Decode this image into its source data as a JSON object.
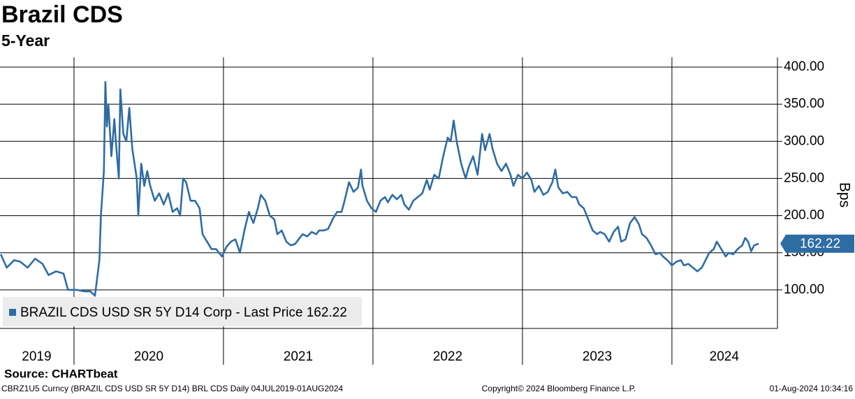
{
  "chart_data": {
    "type": "line",
    "title": "Brazil CDS",
    "subtitle": "5-Year",
    "y_label": "Bps",
    "source": "Source: CHARTbeat",
    "footer_left": "CBRZ1U5 Curncy (BRAZIL CDS USD SR 5Y D14) BRL CDS  Daily 04JUL2019-01AUG2024",
    "footer_center": "Copyright© 2024 Bloomberg Finance L.P.",
    "footer_right": "01-Aug-2024 10:34:16",
    "legend_text": "BRAZIL CDS USD SR 5Y D14 Corp - Last Price 162.22",
    "last_price": 162.22,
    "ylim": [
      50,
      400
    ],
    "yticks": [
      {
        "value": 100,
        "label": "100.00"
      },
      {
        "value": 150,
        "label": "150.00"
      },
      {
        "value": 200,
        "label": "200.00"
      },
      {
        "value": 250,
        "label": "250.00"
      },
      {
        "value": 300,
        "label": "300.00"
      },
      {
        "value": 350,
        "label": "350.00"
      },
      {
        "value": 400,
        "label": "400.00"
      }
    ],
    "xlim": [
      2019.505,
      2024.706
    ],
    "xgrid": [
      2020,
      2021,
      2022,
      2023,
      2024
    ],
    "xticks": [
      {
        "value": 2019.75,
        "label": "2019"
      },
      {
        "value": 2020.5,
        "label": "2020"
      },
      {
        "value": 2021.5,
        "label": "2021"
      },
      {
        "value": 2022.5,
        "label": "2022"
      },
      {
        "value": 2023.5,
        "label": "2023"
      },
      {
        "value": 2024.35,
        "label": "2024"
      }
    ],
    "grid": true,
    "series": [
      {
        "name": "BRAZIL CDS USD SR 5Y D14 Corp",
        "color": "#2e6ca4",
        "x": [
          2019.51,
          2019.55,
          2019.6,
          2019.64,
          2019.69,
          2019.74,
          2019.79,
          2019.83,
          2019.88,
          2019.93,
          2019.96,
          2020.02,
          2020.07,
          2020.11,
          2020.14,
          2020.17,
          2020.18,
          2020.2,
          2020.21,
          2020.22,
          2020.23,
          2020.25,
          2020.27,
          2020.28,
          2020.3,
          2020.31,
          2020.33,
          2020.35,
          2020.37,
          2020.39,
          2020.42,
          2020.43,
          2020.45,
          2020.47,
          2020.49,
          2020.51,
          2020.54,
          2020.57,
          2020.6,
          2020.63,
          2020.66,
          2020.69,
          2020.71,
          2020.73,
          2020.75,
          2020.78,
          2020.81,
          2020.84,
          2020.86,
          2020.89,
          2020.92,
          2020.95,
          2020.99,
          2021.02,
          2021.05,
          2021.08,
          2021.11,
          2021.14,
          2021.17,
          2021.2,
          2021.23,
          2021.25,
          2021.28,
          2021.31,
          2021.34,
          2021.36,
          2021.39,
          2021.42,
          2021.45,
          2021.48,
          2021.51,
          2021.53,
          2021.56,
          2021.59,
          2021.62,
          2021.64,
          2021.67,
          2021.7,
          2021.73,
          2021.76,
          2021.79,
          2021.81,
          2021.84,
          2021.87,
          2021.9,
          2021.92,
          2021.93,
          2021.96,
          2021.99,
          2022.02,
          2022.05,
          2022.08,
          2022.1,
          2022.13,
          2022.16,
          2022.19,
          2022.21,
          2022.24,
          2022.27,
          2022.3,
          2022.33,
          2022.36,
          2022.38,
          2022.41,
          2022.44,
          2022.47,
          2022.5,
          2022.52,
          2022.54,
          2022.56,
          2022.59,
          2022.62,
          2022.64,
          2022.67,
          2022.7,
          2022.73,
          2022.75,
          2022.78,
          2022.8,
          2022.83,
          2022.86,
          2022.89,
          2022.92,
          2022.94,
          2022.97,
          2023.0,
          2023.03,
          2023.06,
          2023.08,
          2023.11,
          2023.14,
          2023.17,
          2023.2,
          2023.22,
          2023.24,
          2023.27,
          2023.3,
          2023.33,
          2023.36,
          2023.38,
          2023.41,
          2023.44,
          2023.47,
          2023.5,
          2023.52,
          2023.55,
          2023.58,
          2023.61,
          2023.64,
          2023.66,
          2023.69,
          2023.72,
          2023.75,
          2023.78,
          2023.8,
          2023.83,
          2023.86,
          2023.89,
          2023.92,
          2023.94,
          2023.97,
          2024.0,
          2024.03,
          2024.06,
          2024.08,
          2024.11,
          2024.14,
          2024.17,
          2024.2,
          2024.22,
          2024.25,
          2024.28,
          2024.3,
          2024.33,
          2024.36,
          2024.38,
          2024.41,
          2024.44,
          2024.47,
          2024.49,
          2024.51,
          2024.53,
          2024.55,
          2024.58
        ],
        "values": [
          148,
          130,
          140,
          138,
          130,
          142,
          135,
          120,
          125,
          122,
          100,
          100,
          98,
          98,
          92,
          140,
          200,
          260,
          380,
          320,
          350,
          280,
          330,
          300,
          250,
          370,
          310,
          300,
          345,
          290,
          250,
          200,
          270,
          240,
          260,
          240,
          220,
          230,
          215,
          230,
          205,
          210,
          200,
          250,
          245,
          220,
          220,
          210,
          175,
          165,
          155,
          155,
          145,
          158,
          165,
          168,
          150,
          180,
          205,
          190,
          210,
          228,
          220,
          200,
          195,
          175,
          180,
          165,
          160,
          162,
          170,
          175,
          172,
          178,
          175,
          180,
          180,
          182,
          195,
          205,
          205,
          220,
          245,
          232,
          238,
          262,
          240,
          220,
          210,
          205,
          220,
          225,
          218,
          228,
          222,
          228,
          215,
          208,
          220,
          225,
          230,
          248,
          235,
          255,
          250,
          280,
          305,
          300,
          328,
          300,
          270,
          250,
          265,
          280,
          255,
          310,
          288,
          310,
          290,
          270,
          260,
          270,
          255,
          240,
          255,
          250,
          258,
          248,
          232,
          240,
          228,
          232,
          245,
          262,
          238,
          230,
          232,
          225,
          225,
          215,
          210,
          195,
          180,
          175,
          178,
          175,
          165,
          178,
          185,
          165,
          168,
          190,
          198,
          188,
          175,
          170,
          160,
          148,
          150,
          145,
          140,
          133,
          138,
          140,
          133,
          135,
          130,
          125,
          130,
          138,
          150,
          155,
          165,
          155,
          145,
          150,
          148,
          155,
          160,
          170,
          165,
          152,
          160,
          162.22
        ]
      }
    ]
  }
}
